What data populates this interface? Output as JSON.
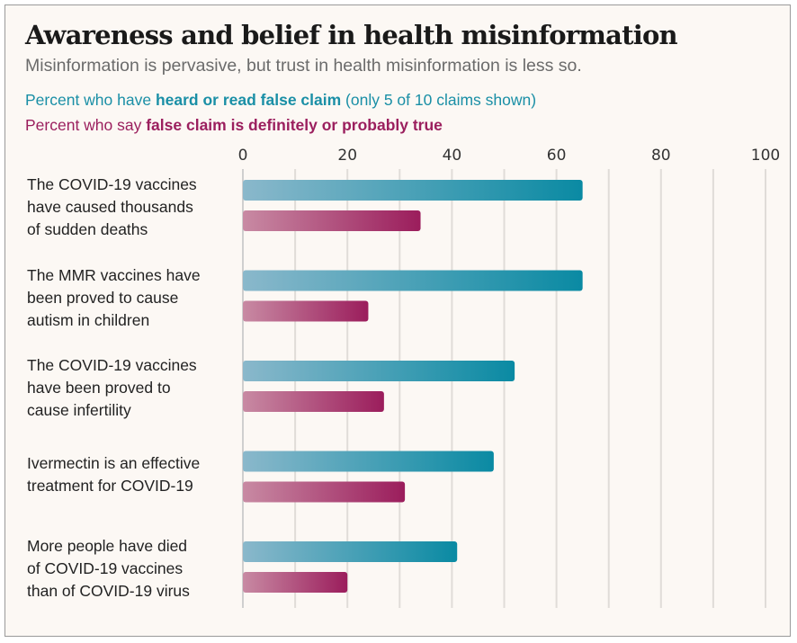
{
  "title": "Awareness and belief in health misinformation",
  "subtitle": "Misinformation is pervasive, but trust in health misinformation is less so.",
  "legend": {
    "heard": {
      "prefix": "Percent who have ",
      "bold": "heard or read false claim",
      "suffix": " (only 5 of 10 claims shown)",
      "color": "#0a8aa3"
    },
    "believe": {
      "prefix": "Percent who say ",
      "bold": "false claim is definitely or probably true",
      "suffix": "",
      "color": "#9b1d5c"
    }
  },
  "chart_data": {
    "type": "bar",
    "orientation": "horizontal",
    "title": "Awareness and belief in health misinformation",
    "subtitle": "Misinformation is pervasive, but trust in health misinformation is less so.",
    "categories": [
      [
        "The COVID-19 vaccines",
        "have caused thousands",
        "of sudden deaths"
      ],
      [
        "The MMR vaccines have",
        "been proved to cause",
        "autism in children"
      ],
      [
        "The COVID-19 vaccines",
        "have been proved to",
        "cause infertility"
      ],
      [
        "Ivermectin is an effective",
        "treatment for COVID-19"
      ],
      [
        "More people have died",
        "of COVID-19 vaccines",
        "than of COVID-19 virus"
      ]
    ],
    "series": [
      {
        "name": "Percent who have heard or read false claim",
        "color": "#0a8aa3",
        "light": "#8ab8cb",
        "values": [
          65,
          65,
          52,
          48,
          41
        ]
      },
      {
        "name": "Percent who say false claim is definitely or probably true",
        "color": "#9b1d5c",
        "light": "#c88aa3",
        "values": [
          34,
          24,
          27,
          31,
          20
        ]
      }
    ],
    "xlim": [
      0,
      100
    ],
    "xticks": [
      0,
      20,
      40,
      60,
      80,
      100
    ],
    "grid_step": 10,
    "grid": true,
    "axis_position": "top",
    "xlabel": "",
    "ylabel": ""
  }
}
